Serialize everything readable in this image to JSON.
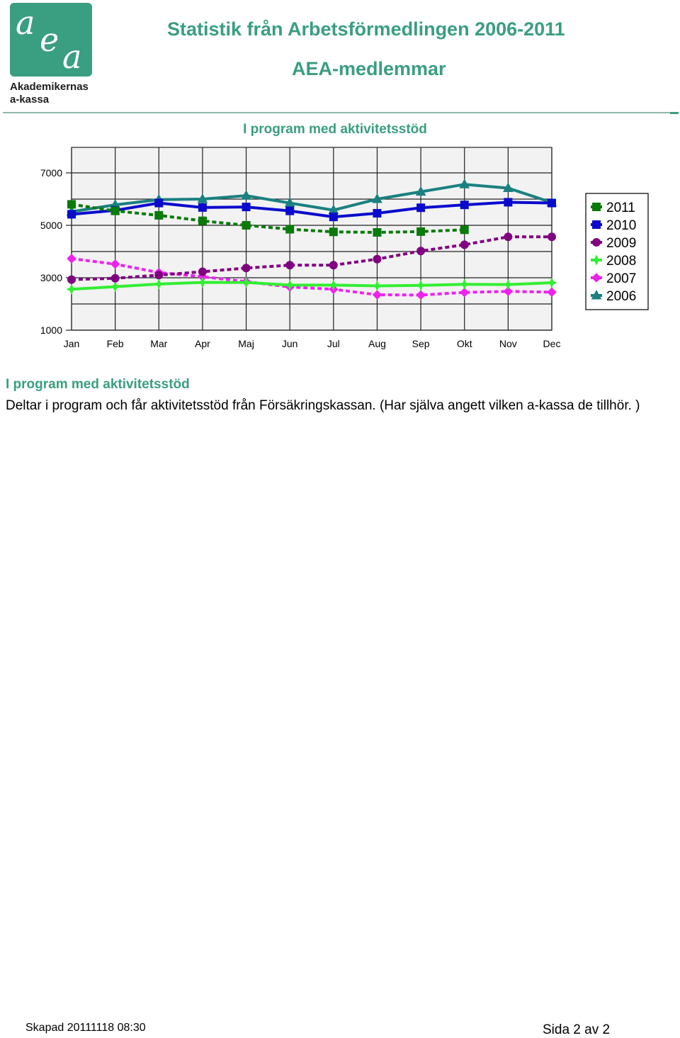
{
  "logo": {
    "line1": "Akademikernas",
    "line2": "a-kassa",
    "mark": "aea"
  },
  "header": {
    "title": "Statistik från Arbetsförmedlingen 2006-2011",
    "subtitle": "AEA-medlemmar"
  },
  "chart_title": "I program med aktivitetsstöd",
  "chart_data": {
    "type": "line",
    "title": "I program med aktivitetsstöd",
    "xlabel": "",
    "ylabel": "",
    "categories": [
      "Jan",
      "Feb",
      "Mar",
      "Apr",
      "Maj",
      "Jun",
      "Jul",
      "Aug",
      "Sep",
      "Okt",
      "Nov",
      "Dec"
    ],
    "ylim": [
      1000,
      7000
    ],
    "yticks": [
      "7000",
      "5000",
      "3000",
      "1000"
    ],
    "grid": true,
    "legend_position": "right",
    "series": [
      {
        "name": "2011",
        "color": "#0a7a0a",
        "marker": "square",
        "dashed": true,
        "values": [
          5800,
          5550,
          5380,
          5170,
          5000,
          4850,
          4750,
          4730,
          4760,
          4830,
          null,
          null
        ]
      },
      {
        "name": "2010",
        "color": "#0a0acc",
        "marker": "square",
        "dashed": false,
        "values": [
          5420,
          5570,
          5850,
          5680,
          5700,
          5550,
          5320,
          5460,
          5670,
          5780,
          5880,
          5850
        ]
      },
      {
        "name": "2009",
        "color": "#800080",
        "marker": "circle",
        "dashed": true,
        "values": [
          2930,
          2980,
          3100,
          3230,
          3370,
          3480,
          3480,
          3710,
          4020,
          4260,
          4560,
          4560
        ]
      },
      {
        "name": "2008",
        "color": "#33ee33",
        "marker": "star",
        "dashed": false,
        "values": [
          2560,
          2660,
          2760,
          2820,
          2820,
          2720,
          2720,
          2690,
          2710,
          2750,
          2740,
          2810
        ]
      },
      {
        "name": "2007",
        "color": "#ee22ee",
        "marker": "diamond",
        "dashed": true,
        "values": [
          3730,
          3520,
          3200,
          3040,
          2850,
          2650,
          2560,
          2350,
          2340,
          2440,
          2480,
          2450
        ]
      },
      {
        "name": "2006",
        "color": "#1a8080",
        "marker": "triangle",
        "dashed": false,
        "values": [
          5520,
          5780,
          5980,
          6000,
          6130,
          5850,
          5580,
          6000,
          6280,
          6560,
          6420,
          5870
        ]
      }
    ]
  },
  "description": {
    "heading": "I program med aktivitetsstöd",
    "text": "Deltar i program och får aktivitetsstöd från Försäkringskassan. (Har själva angett vilken a-kassa de tillhör. )"
  },
  "footer": {
    "created": "Skapad 20111118 08:30",
    "page": "Sida 2 av 2"
  }
}
